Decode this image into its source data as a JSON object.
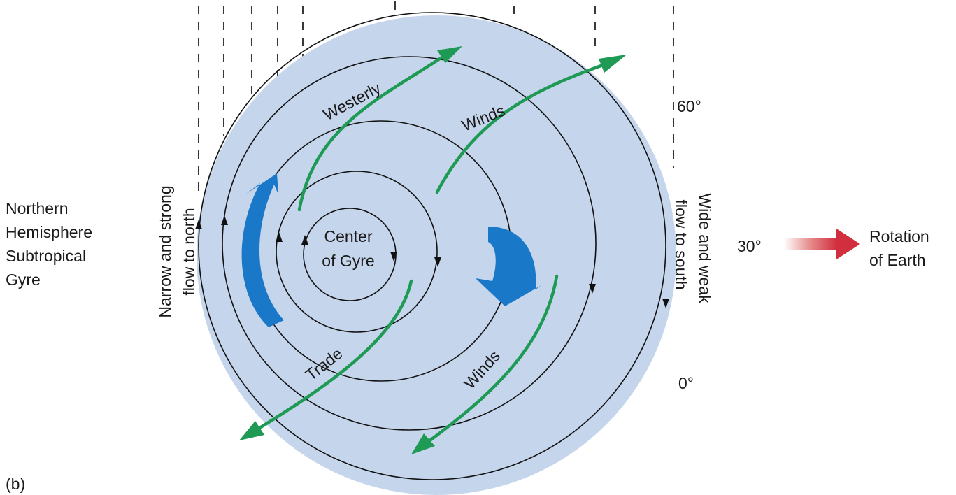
{
  "figure_label": "(b)",
  "gyre_name": {
    "line1": "Northern",
    "line2": "Hemisphere",
    "line3": "Subtropical",
    "line4": "Gyre"
  },
  "center": {
    "line1": "Center",
    "line2": "of Gyre"
  },
  "west_flow": {
    "line1": "Narrow and strong",
    "line2": "flow to north"
  },
  "east_flow": {
    "line1": "Wide and weak",
    "line2": "flow to south"
  },
  "latitudes": {
    "lat60": "60°",
    "lat30": "30°",
    "lat0": "0°"
  },
  "winds": {
    "westerly": "Westerly",
    "westerly_winds": "Winds",
    "trade": "Trade",
    "trade_winds": "Winds"
  },
  "rotation": {
    "line1": "Rotation",
    "line2": "of Earth"
  },
  "colors": {
    "ocean": "#c5d5ec",
    "current_arrow": "#1a78c8",
    "wind_arrow": "#1e9a55",
    "rotation_arrow": "#d12e3e",
    "streamline": "#111111"
  }
}
